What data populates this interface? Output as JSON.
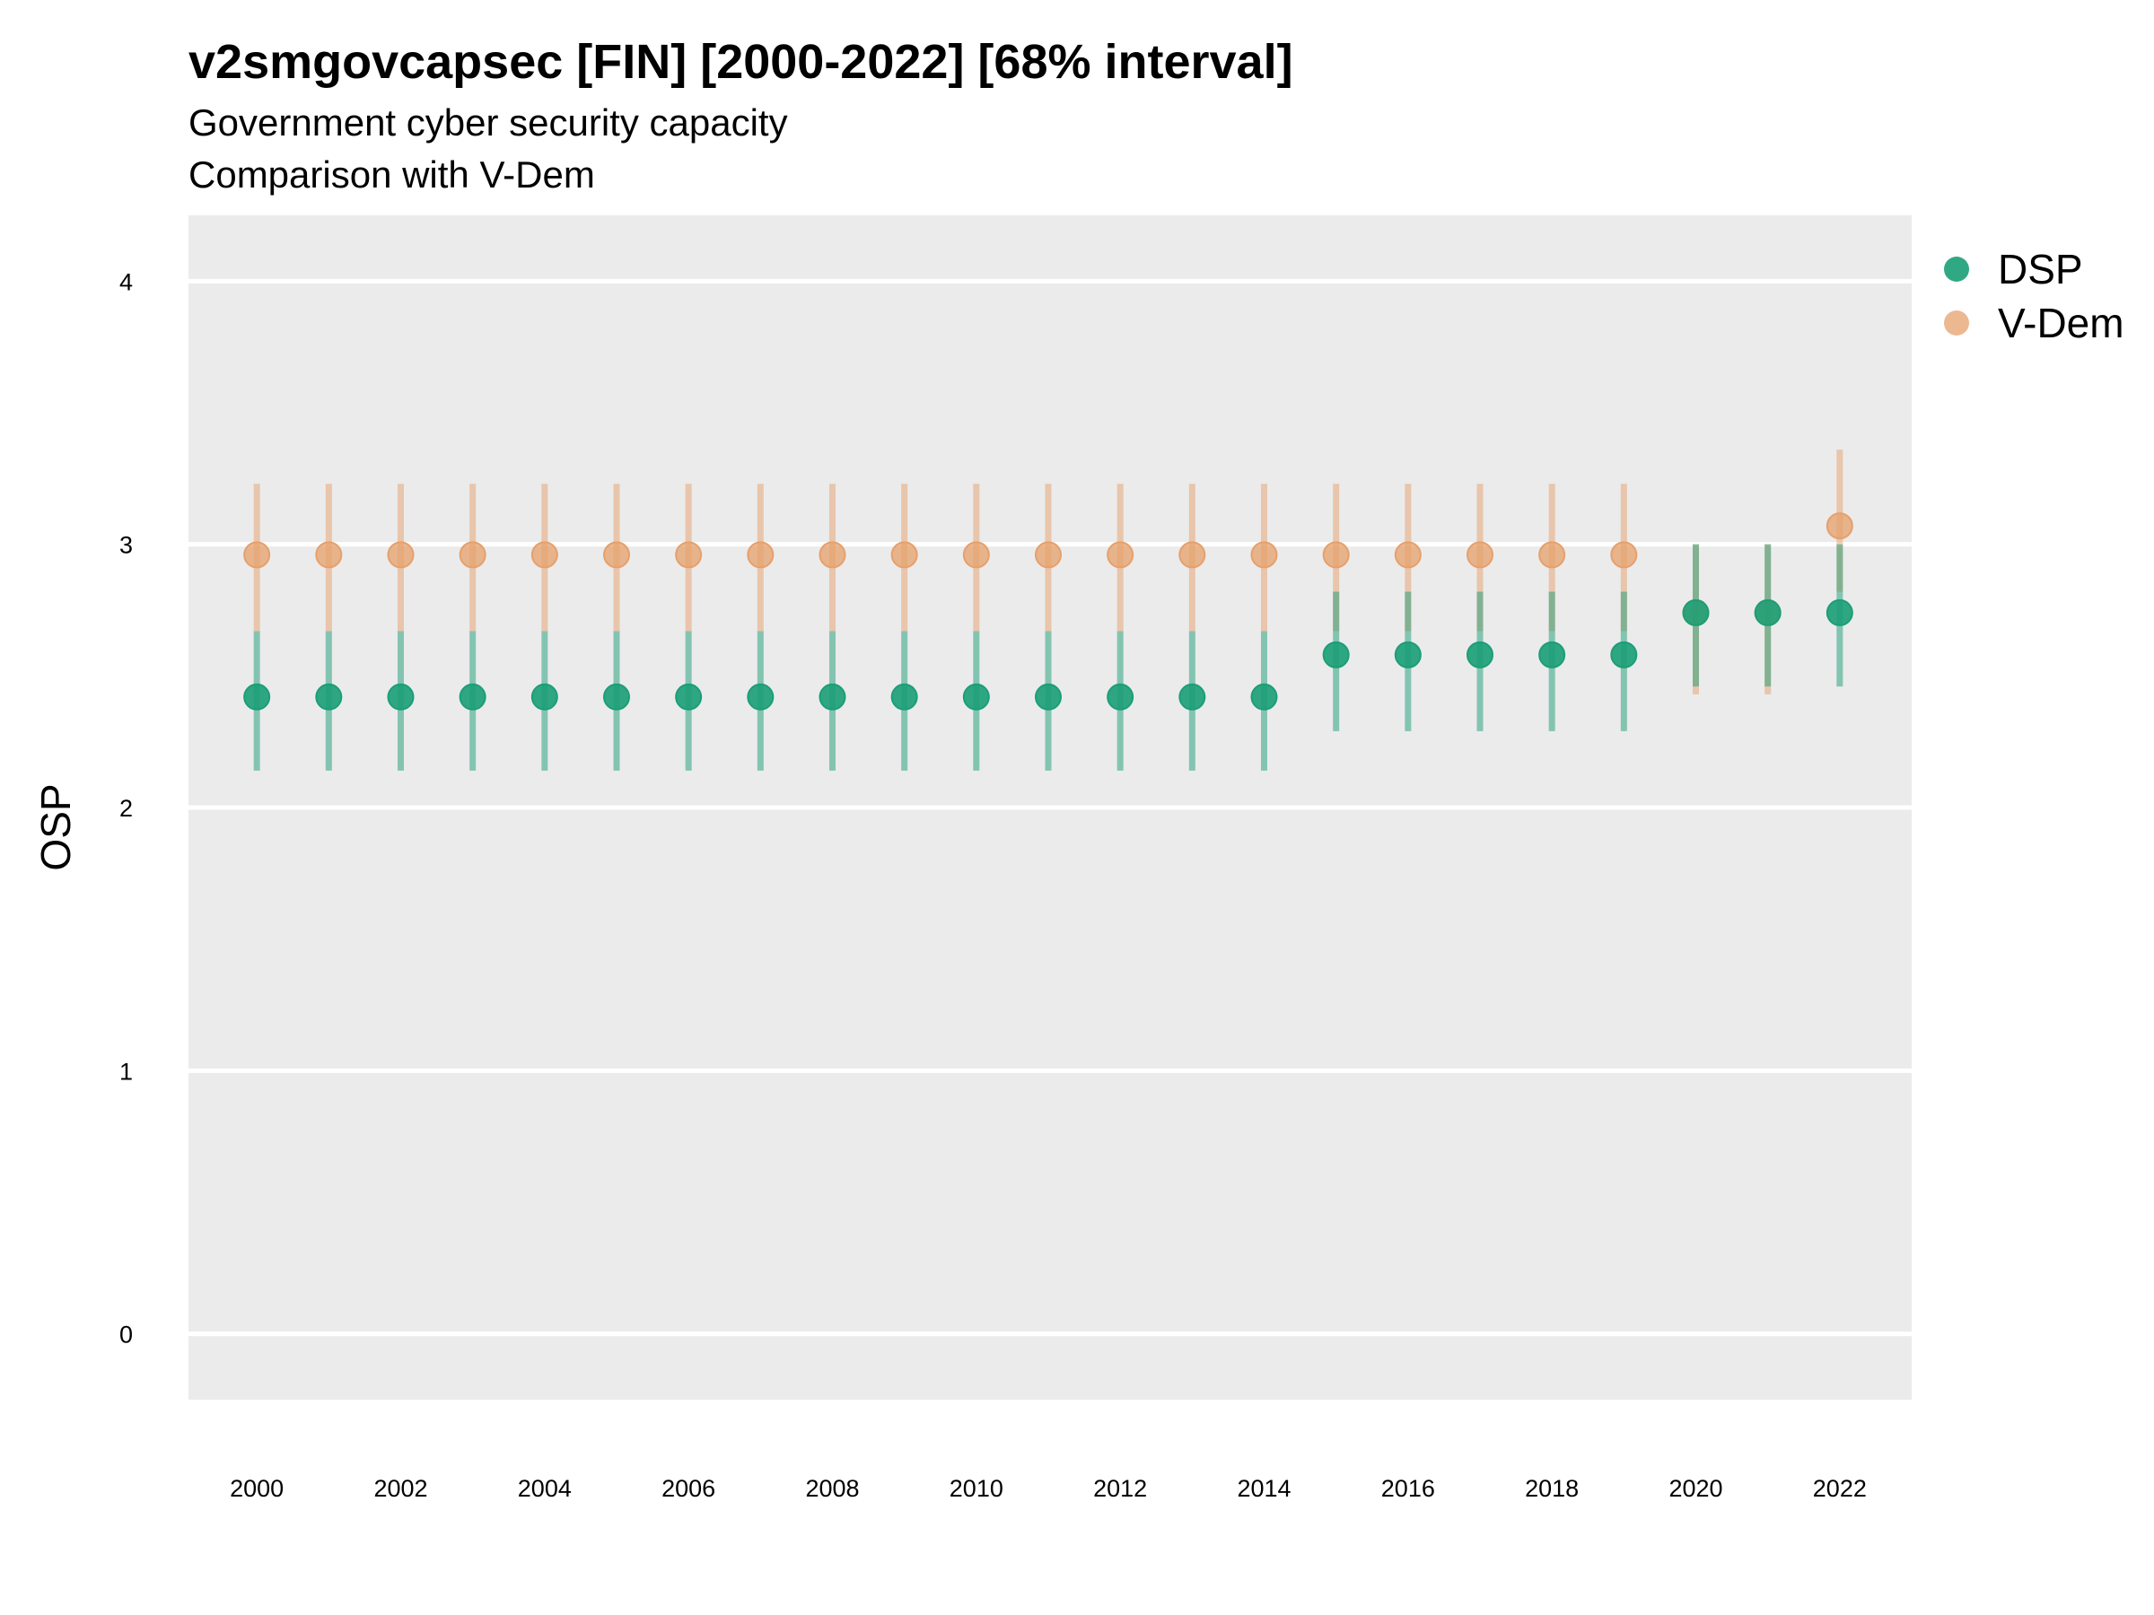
{
  "chart_data": {
    "type": "scatter",
    "title": "v2smgovcapsec [FIN] [2000-2022] [68% interval]",
    "subtitle": "Government cyber security capacity",
    "subtitle2": "Comparison with V-Dem",
    "xlabel": "",
    "ylabel": "OSP",
    "ylim": [
      -0.25,
      4.25
    ],
    "yticks": [
      "0",
      "1",
      "2",
      "3",
      "4"
    ],
    "xlim": [
      1999.05,
      2023.0
    ],
    "xticks": [
      "2000",
      "2002",
      "2004",
      "2006",
      "2008",
      "2010",
      "2012",
      "2014",
      "2016",
      "2018",
      "2020",
      "2022"
    ],
    "grid": true,
    "legend_position": "right",
    "colors": {
      "DSP": "#1b9e77",
      "V-Dem": "#e6a06b",
      "panel": "#ebebeb",
      "gridline": "#ffffff"
    },
    "series": [
      {
        "name": "DSP",
        "x": [
          2000,
          2001,
          2002,
          2003,
          2004,
          2005,
          2006,
          2007,
          2008,
          2009,
          2010,
          2011,
          2012,
          2013,
          2014,
          2015,
          2016,
          2017,
          2018,
          2019,
          2020,
          2021,
          2022
        ],
        "y": [
          2.42,
          2.42,
          2.42,
          2.42,
          2.42,
          2.42,
          2.42,
          2.42,
          2.42,
          2.42,
          2.42,
          2.42,
          2.42,
          2.42,
          2.42,
          2.58,
          2.58,
          2.58,
          2.58,
          2.58,
          2.74,
          2.74,
          2.74
        ],
        "lower": [
          2.14,
          2.14,
          2.14,
          2.14,
          2.14,
          2.14,
          2.14,
          2.14,
          2.14,
          2.14,
          2.14,
          2.14,
          2.14,
          2.14,
          2.14,
          2.29,
          2.29,
          2.29,
          2.29,
          2.29,
          2.46,
          2.46,
          2.46
        ],
        "upper": [
          2.67,
          2.67,
          2.67,
          2.67,
          2.67,
          2.67,
          2.67,
          2.67,
          2.67,
          2.67,
          2.67,
          2.67,
          2.67,
          2.67,
          2.67,
          2.82,
          2.82,
          2.82,
          2.82,
          2.82,
          3.0,
          3.0,
          3.0
        ]
      },
      {
        "name": "V-Dem",
        "x": [
          2000,
          2001,
          2002,
          2003,
          2004,
          2005,
          2006,
          2007,
          2008,
          2009,
          2010,
          2011,
          2012,
          2013,
          2014,
          2015,
          2016,
          2017,
          2018,
          2019,
          2020,
          2021,
          2022
        ],
        "y": [
          2.96,
          2.96,
          2.96,
          2.96,
          2.96,
          2.96,
          2.96,
          2.96,
          2.96,
          2.96,
          2.96,
          2.96,
          2.96,
          2.96,
          2.96,
          2.96,
          2.96,
          2.96,
          2.96,
          2.96,
          2.74,
          2.74,
          3.07
        ],
        "lower": [
          2.67,
          2.67,
          2.67,
          2.67,
          2.67,
          2.67,
          2.67,
          2.67,
          2.67,
          2.67,
          2.67,
          2.67,
          2.67,
          2.67,
          2.67,
          2.67,
          2.67,
          2.67,
          2.67,
          2.67,
          2.43,
          2.43,
          2.82
        ],
        "upper": [
          3.23,
          3.23,
          3.23,
          3.23,
          3.23,
          3.23,
          3.23,
          3.23,
          3.23,
          3.23,
          3.23,
          3.23,
          3.23,
          3.23,
          3.23,
          3.23,
          3.23,
          3.23,
          3.23,
          3.23,
          3.0,
          3.0,
          3.36
        ]
      }
    ]
  }
}
